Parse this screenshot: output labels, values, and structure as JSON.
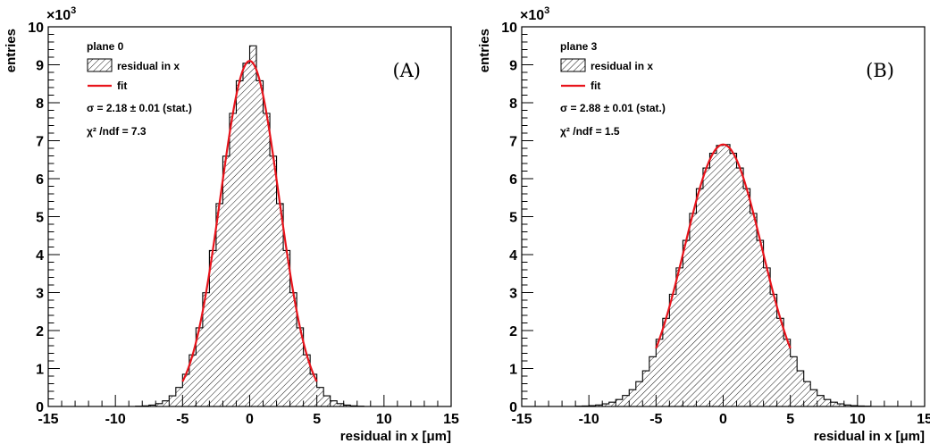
{
  "chart_data": [
    {
      "type": "bar",
      "panel_tag": "(A)",
      "plane_label": "plane 0",
      "legend": [
        "residual in x",
        "fit"
      ],
      "sigma_text": "σ = 2.18 ± 0.01 (stat.)",
      "chi2_text": "χ² /ndf = 7.3",
      "xlabel": "residual in x [μm]",
      "ylabel": "entries",
      "y_multiplier_base": "×10",
      "y_multiplier_exp": "3",
      "xlim": [
        -15,
        15
      ],
      "ylim": [
        0,
        10
      ],
      "x_ticks": [
        -15,
        -10,
        -5,
        0,
        5,
        10,
        15
      ],
      "y_ticks": [
        0,
        1,
        2,
        3,
        4,
        5,
        6,
        7,
        8,
        9,
        10
      ],
      "series": [
        {
          "name": "residual in x",
          "mu": 0.0,
          "sigma": 2.18,
          "amplitude": 9.1,
          "bin_width": 0.5,
          "peak_bin_value": 9.5
        },
        {
          "name": "fit",
          "mu": 0.0,
          "sigma": 2.18,
          "amplitude": 9.1,
          "fit_range": [
            -5,
            5
          ]
        }
      ]
    },
    {
      "type": "bar",
      "panel_tag": "(B)",
      "plane_label": "plane 3",
      "legend": [
        "residual in x",
        "fit"
      ],
      "sigma_text": "σ = 2.88 ± 0.01 (stat.)",
      "chi2_text": "χ² /ndf = 1.5",
      "xlabel": "residual in x [μm]",
      "ylabel": "entries",
      "y_multiplier_base": "×10",
      "y_multiplier_exp": "3",
      "xlim": [
        -15,
        15
      ],
      "ylim": [
        0,
        10
      ],
      "x_ticks": [
        -15,
        -10,
        -5,
        0,
        5,
        10,
        15
      ],
      "y_ticks": [
        0,
        1,
        2,
        3,
        4,
        5,
        6,
        7,
        8,
        9,
        10
      ],
      "series": [
        {
          "name": "residual in x",
          "mu": 0.0,
          "sigma": 2.88,
          "amplitude": 6.9,
          "bin_width": 0.5,
          "peak_bin_value": 6.9
        },
        {
          "name": "fit",
          "mu": 0.0,
          "sigma": 2.88,
          "amplitude": 6.9,
          "fit_range": [
            -5,
            5
          ]
        }
      ]
    }
  ]
}
